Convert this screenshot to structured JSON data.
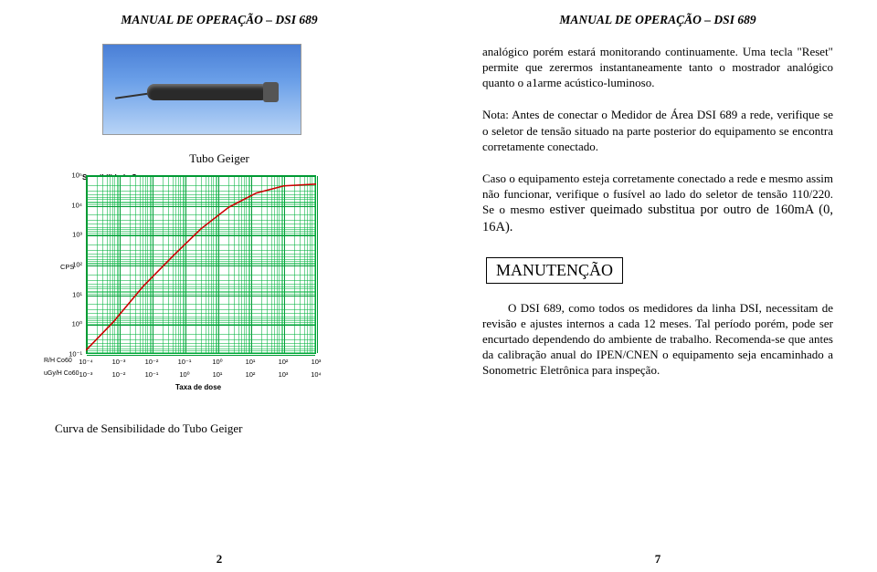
{
  "header": "MANUAL DE OPERAÇÃO – DSI 689",
  "left": {
    "photo_alt": "Tubo Geiger",
    "tubo_label": "Tubo Geiger",
    "chart": {
      "title": "Sensibilidade Gama",
      "y_axis_caption": "CPS",
      "x_caption": "Taxa de dose",
      "x_row1_prefix": "R/H Co60",
      "x_row2_prefix": "uGy/H Co60",
      "y_ticks": [
        "10⁵",
        "10⁴",
        "10³",
        "10²",
        "10¹",
        "10⁰",
        "10⁻¹"
      ],
      "x_row1": [
        "10⁻⁴",
        "10⁻³",
        "10⁻²",
        "10⁻¹",
        "10⁰",
        "10¹",
        "10²",
        "10³"
      ],
      "x_row2": [
        "10⁻³",
        "10⁻²",
        "10⁻¹",
        "10⁰",
        "10¹",
        "10²",
        "10³",
        "10⁴"
      ],
      "grid_color": "#009933",
      "curve_color": "#cc0000",
      "curve_points": [
        [
          0,
          0.02
        ],
        [
          0.12,
          0.18
        ],
        [
          0.25,
          0.38
        ],
        [
          0.38,
          0.55
        ],
        [
          0.5,
          0.7
        ],
        [
          0.62,
          0.82
        ],
        [
          0.74,
          0.9
        ],
        [
          0.86,
          0.94
        ],
        [
          1.0,
          0.95
        ]
      ]
    },
    "footer_caption": "Curva de Sensibilidade do Tubo Geiger",
    "page_num": "2"
  },
  "right": {
    "p1": "analógico porém estará monitorando continuamente. Uma tecla \"Reset\" permite que zerermos instantaneamente tanto o mostrador analógico quanto o a1arme acústico-luminoso.",
    "p2": "Nota: Antes de conectar o Medidor de Área DSI 689 a rede, verifique se o seletor de tensão situado na parte posterior do equipamento se encontra corretamente conectado.",
    "p3_a": "Caso o equipamento esteja corretamente conectado a rede e mesmo assim não funcionar, verifique o fusível ao lado do seletor de tensão 110/220. Se o mesmo ",
    "p3_b": "estiver queimado substitua por outro de 160mA (0, 16A).",
    "manutencao": "MANUTENÇÃO",
    "p4": "O DSI 689, como todos os medidores da linha DSI, necessitam de revisão e ajustes internos a cada 12 meses. Tal período porém, pode ser encurtado dependendo do ambiente de trabalho. Recomenda-se que antes da calibração anual do IPEN/CNEN o equipamento seja encaminhado a Sonometric Eletrônica para inspeção.",
    "page_num": "7"
  }
}
